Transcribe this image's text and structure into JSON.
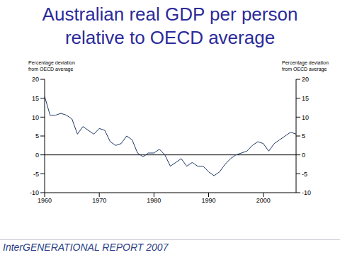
{
  "chart_data": {
    "type": "line",
    "title": "Australian real GDP per person relative to OECD average",
    "y_label": "Percentage deviation from OECD average",
    "y2_label": "Percentage deviation from OECD average",
    "annotations": [
      "InterGENERATIONAL REPORT 2007"
    ],
    "x": [
      1960,
      1961,
      1962,
      1963,
      1964,
      1965,
      1966,
      1967,
      1968,
      1969,
      1970,
      1971,
      1972,
      1973,
      1974,
      1975,
      1976,
      1977,
      1978,
      1979,
      1980,
      1981,
      1982,
      1983,
      1984,
      1985,
      1986,
      1987,
      1988,
      1989,
      1990,
      1991,
      1992,
      1993,
      1994,
      1995,
      1996,
      1997,
      1998,
      1999,
      2000,
      2001,
      2002,
      2003,
      2004,
      2005,
      2006
    ],
    "series": [
      {
        "name": "Australia",
        "color": "#1f3864",
        "values": [
          15.5,
          10.5,
          10.5,
          11,
          10.5,
          9.5,
          5.5,
          7.5,
          6.5,
          5.5,
          7,
          6.5,
          3.5,
          2.5,
          3,
          5,
          4,
          0.5,
          -0.5,
          0.5,
          0.5,
          1.5,
          0,
          -3,
          -2,
          -1,
          -3,
          -2,
          -3,
          -3,
          -4.5,
          -5.5,
          -4.5,
          -2.5,
          -1,
          0,
          0.5,
          1,
          2.5,
          3.5,
          3,
          1,
          3,
          4,
          5,
          6,
          5.5
        ]
      }
    ],
    "xlim": [
      1960,
      2006
    ],
    "xticks": [
      1960,
      1970,
      1980,
      1990,
      2000
    ],
    "ylim": [
      -10,
      20
    ],
    "yticks": [
      -10,
      -5,
      0,
      5,
      10,
      15,
      20
    ],
    "y2lim": [
      -10,
      20
    ],
    "y2ticks": [
      -10,
      -5,
      0,
      5,
      10,
      15,
      20
    ],
    "grid": false
  }
}
